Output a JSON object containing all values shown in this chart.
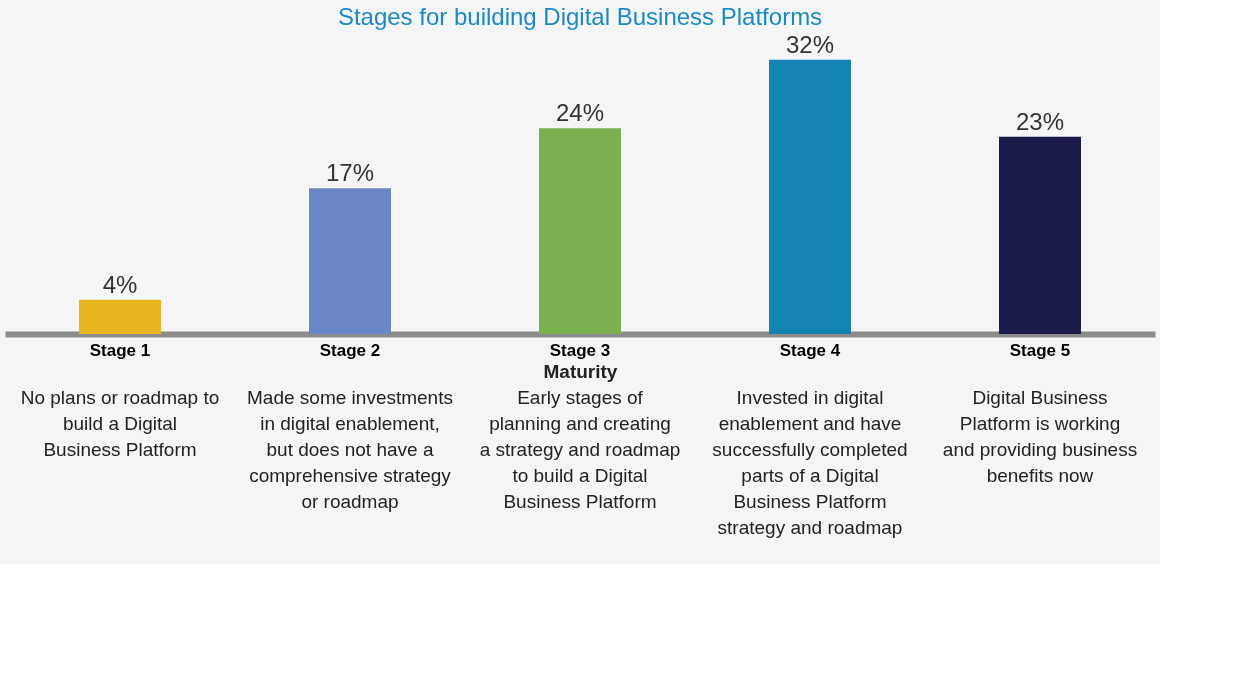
{
  "chart_data": {
    "type": "bar",
    "title": "Stages for building Digital Business Platforms",
    "xlabel": "Maturity",
    "categories": [
      "Stage 1",
      "Stage 2",
      "Stage 3",
      "Stage 4",
      "Stage 5"
    ],
    "values": [
      4,
      17,
      24,
      32,
      23
    ],
    "value_labels": [
      "4%",
      "17%",
      "24%",
      "32%",
      "23%"
    ],
    "colors": [
      "#e8b420",
      "#6a86c4",
      "#7ab04f",
      "#1484b4",
      "#1c1c4c"
    ],
    "annotations": [
      "No plans or roadmap to build a Digital Business Platform",
      "Made some investments in digital enablement, but does not have a comprehensive strategy or roadmap",
      "Early stages of planning and creating a strategy and roadmap to build a Digital Business Platform",
      "Invested in digital enablement and have successfully completed parts of a Digital Business Platform strategy and roadmap",
      "Digital Business Platform is working and providing business benefits now"
    ],
    "grid": false
  }
}
